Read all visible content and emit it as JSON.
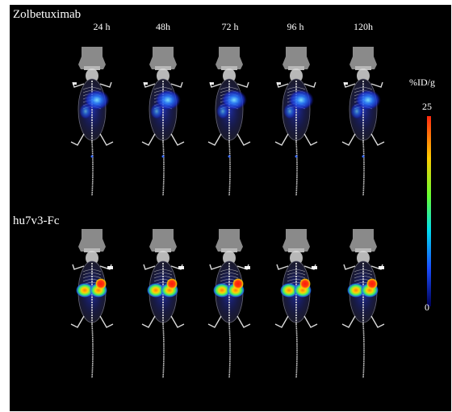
{
  "figure": {
    "rows": [
      {
        "label": "Zolbetuximab",
        "hot_tumor": false
      },
      {
        "label": "hu7v3-Fc",
        "hot_tumor": true
      }
    ],
    "timepoints": [
      "24 h",
      "48h",
      "72 h",
      "96 h",
      "120h"
    ],
    "colorbar": {
      "unit": "%ID/g",
      "max_label": "25",
      "min_label": "0",
      "colormap": [
        "#ff2a10",
        "#ffcc00",
        "#66ff33",
        "#00ddee",
        "#1a4dff",
        "#000055"
      ]
    }
  }
}
